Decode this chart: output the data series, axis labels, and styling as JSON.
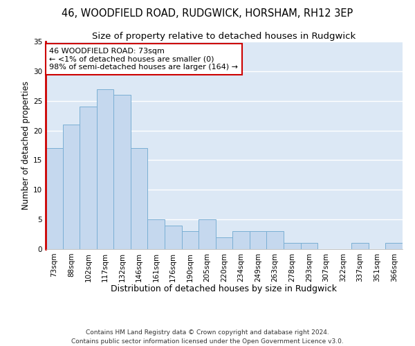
{
  "title1": "46, WOODFIELD ROAD, RUDGWICK, HORSHAM, RH12 3EP",
  "title2": "Size of property relative to detached houses in Rudgwick",
  "xlabel": "Distribution of detached houses by size in Rudgwick",
  "ylabel": "Number of detached properties",
  "categories": [
    "73sqm",
    "88sqm",
    "102sqm",
    "117sqm",
    "132sqm",
    "146sqm",
    "161sqm",
    "176sqm",
    "190sqm",
    "205sqm",
    "220sqm",
    "234sqm",
    "249sqm",
    "263sqm",
    "278sqm",
    "293sqm",
    "307sqm",
    "322sqm",
    "337sqm",
    "351sqm",
    "366sqm"
  ],
  "values": [
    17,
    21,
    24,
    27,
    26,
    17,
    5,
    4,
    3,
    5,
    2,
    3,
    3,
    3,
    1,
    1,
    0,
    0,
    1,
    0,
    1
  ],
  "bar_color": "#c5d8ee",
  "bar_edge_color": "#7aafd4",
  "highlight_color": "#cc0000",
  "annotation_line1": "46 WOODFIELD ROAD: 73sqm",
  "annotation_line2": "← <1% of detached houses are smaller (0)",
  "annotation_line3": "98% of semi-detached houses are larger (164) →",
  "annotation_box_color": "#ffffff",
  "annotation_box_edge": "#cc0000",
  "ylim": [
    0,
    35
  ],
  "yticks": [
    0,
    5,
    10,
    15,
    20,
    25,
    30,
    35
  ],
  "background_color": "#dce8f5",
  "plot_bg_color": "#dce8f5",
  "fig_bg_color": "#ffffff",
  "grid_color": "#ffffff",
  "footer_text": "Contains HM Land Registry data © Crown copyright and database right 2024.\nContains public sector information licensed under the Open Government Licence v3.0.",
  "title1_fontsize": 10.5,
  "title2_fontsize": 9.5,
  "xlabel_fontsize": 9,
  "ylabel_fontsize": 8.5,
  "tick_fontsize": 7.5,
  "annotation_fontsize": 8,
  "footer_fontsize": 6.5
}
